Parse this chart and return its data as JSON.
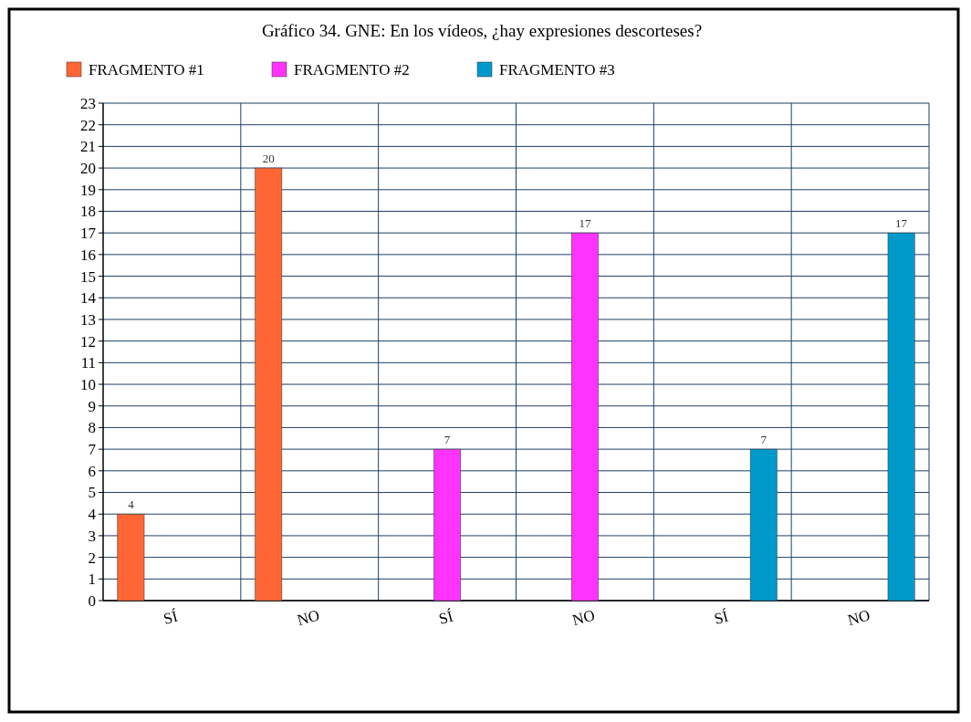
{
  "chart_data": {
    "type": "bar",
    "title": "Gráfico 34. GNE: En los vídeos, ¿hay expresiones descorteses?",
    "categories": [
      "SÍ",
      "NO",
      "SÍ",
      "NO",
      "SÍ",
      "NO"
    ],
    "series": [
      {
        "name": "FRAGMENTO #1",
        "color": "#ff6633",
        "values": [
          4,
          20,
          null,
          null,
          null,
          null
        ]
      },
      {
        "name": "FRAGMENTO #2",
        "color": "#ff33ff",
        "values": [
          null,
          null,
          7,
          17,
          null,
          null
        ]
      },
      {
        "name": "FRAGMENTO #3",
        "color": "#0099cc",
        "values": [
          null,
          null,
          null,
          null,
          7,
          17
        ]
      }
    ],
    "ylim": [
      0,
      23
    ],
    "yticks": [
      0,
      1,
      2,
      3,
      4,
      5,
      6,
      7,
      8,
      9,
      10,
      11,
      12,
      13,
      14,
      15,
      16,
      17,
      18,
      19,
      20,
      21,
      22,
      23
    ],
    "grid": true,
    "legend": "top left",
    "data_labels": true
  }
}
